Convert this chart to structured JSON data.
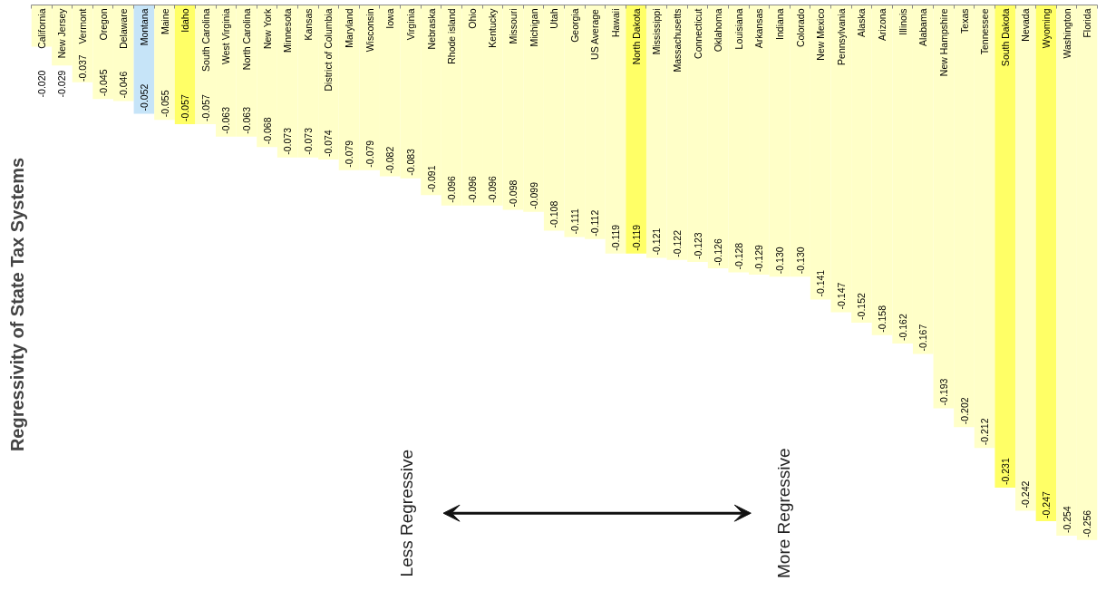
{
  "chart_data": {
    "type": "bar",
    "title": "Regressivity of State Tax Systems",
    "categories": [
      "California",
      "New Jersey",
      "Vermont",
      "Oregon",
      "Delaware",
      "Montana",
      "Maine",
      "Idaho",
      "South Carolina",
      "West Virginia",
      "North Carolina",
      "New York",
      "Minnesota",
      "Kansas",
      "District of Columbia",
      "Maryland",
      "Wisconsin",
      "Iowa",
      "Virginia",
      "Nebraska",
      "Rhode island",
      "Ohio",
      "Kentucky",
      "Missouri",
      "Michigan",
      "Utah",
      "Georgia",
      "US Average",
      "Hawaii",
      "North Dakota",
      "Mississippi",
      "Massachusetts",
      "Connecticut",
      "Oklahoma",
      "Louisiana",
      "Arkansas",
      "Indiana",
      "Colorado",
      "New Mexico",
      "Pennsylvania",
      "Alaska",
      "Arizona",
      "Illinois",
      "Alabama",
      "New Hampshire",
      "Texas",
      "Tennessee",
      "South Dakota",
      "Nevada",
      "Wyoming",
      "Washington",
      "Florida"
    ],
    "values": [
      -0.02,
      -0.029,
      -0.037,
      -0.045,
      -0.046,
      -0.052,
      -0.055,
      -0.057,
      -0.057,
      -0.063,
      -0.063,
      -0.068,
      -0.073,
      -0.073,
      -0.074,
      -0.079,
      -0.079,
      -0.082,
      -0.083,
      -0.091,
      -0.096,
      -0.096,
      -0.096,
      -0.098,
      -0.099,
      -0.108,
      -0.111,
      -0.112,
      -0.119,
      -0.119,
      -0.121,
      -0.122,
      -0.123,
      -0.126,
      -0.128,
      -0.129,
      -0.13,
      -0.13,
      -0.141,
      -0.147,
      -0.152,
      -0.158,
      -0.162,
      -0.167,
      -0.193,
      -0.202,
      -0.212,
      -0.231,
      -0.242,
      -0.247,
      -0.254,
      -0.256
    ],
    "value_labels": [
      "-0.020",
      "-0.029",
      "-0.037",
      "-0.045",
      "-0.046",
      "-0.052",
      "-0.055",
      "-0.057",
      "-0.057",
      "-0.063",
      "-0.063",
      "-0.068",
      "-0.073",
      "-0.073",
      "-0.074",
      "-0.079",
      "-0.079",
      "-0.082",
      "-0.083",
      "-0.091",
      "-0.096",
      "-0.096",
      "-0.096",
      "-0.098",
      "-0.099",
      "-0.108",
      "-0.111",
      "-0.112",
      "-0.119",
      "-0.119",
      "-0.121",
      "-0.122",
      "-0.123",
      "-0.126",
      "-0.128",
      "-0.129",
      "-0.130",
      "-0.130",
      "-0.141",
      "-0.147",
      "-0.152",
      "-0.158",
      "-0.162",
      "-0.167",
      "-0.193",
      "-0.202",
      "-0.212",
      "-0.231",
      "-0.242",
      "-0.247",
      "-0.254",
      "-0.256"
    ],
    "colors": [
      "#ffffc8",
      "#ffffc8",
      "#ffffc8",
      "#ffffc8",
      "#ffffc8",
      "#c6e4f8",
      "#ffffc8",
      "#ffff66",
      "#ffffc8",
      "#ffffc8",
      "#ffffc8",
      "#ffffc8",
      "#ffffc8",
      "#ffffc8",
      "#ffffc8",
      "#ffffc8",
      "#ffffc8",
      "#ffffc8",
      "#ffffc8",
      "#ffffc8",
      "#ffffc8",
      "#ffffc8",
      "#ffffc8",
      "#ffffc8",
      "#ffffc8",
      "#ffffc8",
      "#ffffc8",
      "#ffffc8",
      "#ffffc8",
      "#ffff66",
      "#ffffc8",
      "#ffffc8",
      "#ffffc8",
      "#ffffc8",
      "#ffffc8",
      "#ffffc8",
      "#ffffc8",
      "#ffffc8",
      "#ffffc8",
      "#ffffc8",
      "#ffffc8",
      "#ffffc8",
      "#ffffc8",
      "#ffffc8",
      "#ffffc8",
      "#ffffc8",
      "#ffffc8",
      "#ffff66",
      "#ffffc8",
      "#ffff66",
      "#ffffc8",
      "#ffffc8"
    ],
    "annotations": [
      "Less Regressive",
      "More Regressive"
    ],
    "grid": false
  }
}
